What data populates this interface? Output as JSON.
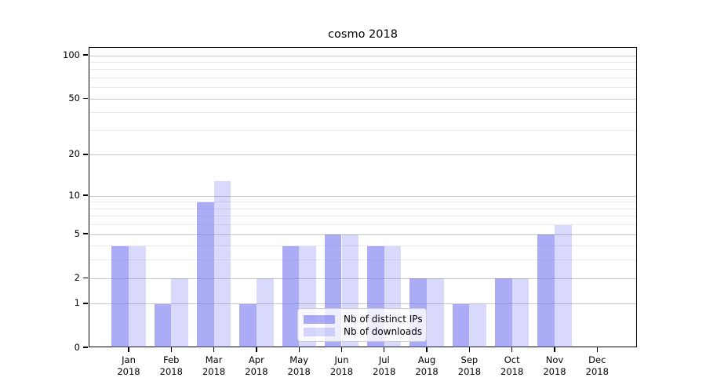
{
  "chart_data": {
    "type": "bar",
    "title": "cosmo 2018",
    "categories": [
      "Jan",
      "Feb",
      "Mar",
      "Apr",
      "May",
      "Jun",
      "Jul",
      "Aug",
      "Sep",
      "Oct",
      "Nov",
      "Dec"
    ],
    "category_year": "2018",
    "series": [
      {
        "name": "Nb of distinct IPs",
        "color": "#6666ee",
        "alpha": 0.55,
        "values": [
          4,
          1,
          9,
          1,
          4,
          5,
          4,
          2,
          1,
          2,
          5,
          0
        ]
      },
      {
        "name": "Nb of downloads",
        "color": "#6666ee",
        "alpha": 0.25,
        "values": [
          4,
          2,
          13,
          2,
          4,
          5,
          4,
          2,
          1,
          2,
          6,
          0
        ]
      }
    ],
    "xlabel": "",
    "ylabel": "",
    "y_scale": "log1p",
    "ylim": [
      0,
      113
    ],
    "y_major_ticks": [
      0,
      1,
      2,
      5,
      10,
      20,
      50,
      100
    ],
    "y_minor_ticks": [
      3,
      4,
      6,
      7,
      8,
      9,
      30,
      40,
      60,
      70,
      80,
      90
    ],
    "grid": true,
    "legend_position": "lower center",
    "colors": {
      "background": "#ffffff",
      "axis_spine": "#000000",
      "major_grid": "#c8c8c8",
      "minor_grid": "#ebebeb",
      "tick_text": "#000000"
    }
  }
}
